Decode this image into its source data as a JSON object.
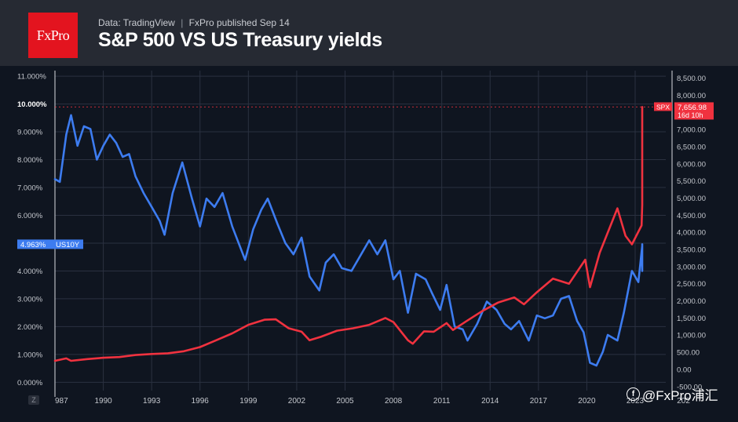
{
  "header": {
    "logo_text": "FxPro",
    "source": "Data: TradingView",
    "separator": "|",
    "published": "FxPro published Sep 14",
    "title": "S&P 500 VS US Treasury yields"
  },
  "watermark": {
    "icon": "facebook-icon",
    "text": "@FxPro浦汇"
  },
  "zoom_label": "Z",
  "colors": {
    "background": "#0f1520",
    "header": "#262a33",
    "us10y": "#3d7cf0",
    "spx": "#f0323f",
    "grid": "#2a3140",
    "axis_text": "#c4c7cd"
  },
  "chart_data": {
    "type": "line",
    "title": "S&P 500 VS US Treasury yields",
    "xlabel": "",
    "x_ticks": [
      "987",
      "1990",
      "1993",
      "1996",
      "1999",
      "2002",
      "2005",
      "2008",
      "2011",
      "2014",
      "2017",
      "2020",
      "2023",
      "202"
    ],
    "x_range": [
      1987,
      2024.9
    ],
    "left_axis": {
      "ticks": [
        "0.000%",
        "1.000%",
        "2.000%",
        "3.000%",
        "4.000%",
        "5.000%",
        "6.000%",
        "7.000%",
        "8.000%",
        "9.000%",
        "10.000%",
        "11.000%"
      ],
      "range": [
        -0.3,
        11.2
      ]
    },
    "right_axis": {
      "ticks": [
        "-500.00",
        "0.00",
        "500.00",
        "1,000.00",
        "1,500.00",
        "2,000.00",
        "2,500.00",
        "3,000.00",
        "3,500.00",
        "4,000.00",
        "4,500.00",
        "5,000.00",
        "5,500.00",
        "6,000.00",
        "6,500.00",
        "7,000.00",
        "7,500.00",
        "8,000.00",
        "8,500.00"
      ],
      "range": [
        -620,
        8720
      ]
    },
    "series": [
      {
        "name": "US10Y",
        "axis": "left",
        "last_label": "4.963%",
        "points": [
          [
            1987.0,
            7.3
          ],
          [
            1987.3,
            7.2
          ],
          [
            1987.7,
            8.9
          ],
          [
            1988.0,
            9.6
          ],
          [
            1988.4,
            8.5
          ],
          [
            1988.8,
            9.2
          ],
          [
            1989.2,
            9.1
          ],
          [
            1989.6,
            8.0
          ],
          [
            1990.0,
            8.5
          ],
          [
            1990.4,
            8.9
          ],
          [
            1990.8,
            8.6
          ],
          [
            1991.2,
            8.1
          ],
          [
            1991.6,
            8.2
          ],
          [
            1992.0,
            7.4
          ],
          [
            1992.5,
            6.8
          ],
          [
            1993.0,
            6.3
          ],
          [
            1993.5,
            5.8
          ],
          [
            1993.8,
            5.3
          ],
          [
            1994.3,
            6.8
          ],
          [
            1994.9,
            7.9
          ],
          [
            1995.5,
            6.6
          ],
          [
            1996.0,
            5.6
          ],
          [
            1996.4,
            6.6
          ],
          [
            1996.9,
            6.3
          ],
          [
            1997.4,
            6.8
          ],
          [
            1998.0,
            5.6
          ],
          [
            1998.8,
            4.4
          ],
          [
            1999.3,
            5.5
          ],
          [
            1999.8,
            6.2
          ],
          [
            2000.2,
            6.6
          ],
          [
            2000.8,
            5.7
          ],
          [
            2001.3,
            5.0
          ],
          [
            2001.8,
            4.6
          ],
          [
            2002.3,
            5.2
          ],
          [
            2002.8,
            3.8
          ],
          [
            2003.4,
            3.3
          ],
          [
            2003.8,
            4.3
          ],
          [
            2004.3,
            4.6
          ],
          [
            2004.8,
            4.1
          ],
          [
            2005.4,
            4.0
          ],
          [
            2005.9,
            4.5
          ],
          [
            2006.5,
            5.1
          ],
          [
            2007.0,
            4.6
          ],
          [
            2007.5,
            5.1
          ],
          [
            2008.0,
            3.7
          ],
          [
            2008.4,
            4.0
          ],
          [
            2008.9,
            2.5
          ],
          [
            2009.4,
            3.9
          ],
          [
            2010.0,
            3.7
          ],
          [
            2010.4,
            3.2
          ],
          [
            2010.9,
            2.6
          ],
          [
            2011.3,
            3.5
          ],
          [
            2011.8,
            2.0
          ],
          [
            2012.3,
            1.9
          ],
          [
            2012.6,
            1.5
          ],
          [
            2013.2,
            2.1
          ],
          [
            2013.8,
            2.9
          ],
          [
            2014.4,
            2.6
          ],
          [
            2014.9,
            2.1
          ],
          [
            2015.3,
            1.9
          ],
          [
            2015.8,
            2.2
          ],
          [
            2016.4,
            1.5
          ],
          [
            2016.9,
            2.4
          ],
          [
            2017.4,
            2.3
          ],
          [
            2017.9,
            2.4
          ],
          [
            2018.4,
            3.0
          ],
          [
            2018.9,
            3.1
          ],
          [
            2019.4,
            2.2
          ],
          [
            2019.8,
            1.8
          ],
          [
            2020.2,
            0.7
          ],
          [
            2020.6,
            0.6
          ],
          [
            2021.0,
            1.1
          ],
          [
            2021.3,
            1.7
          ],
          [
            2021.9,
            1.5
          ],
          [
            2022.3,
            2.5
          ],
          [
            2022.8,
            4.0
          ],
          [
            2023.2,
            3.6
          ],
          [
            2023.8,
            4.9
          ],
          [
            2024.1,
            4.0
          ],
          [
            2024.5,
            4.5
          ],
          [
            2024.8,
            4.3
          ],
          [
            2025.2,
            4.4
          ],
          [
            2025.6,
            4.1
          ],
          [
            2025.9,
            4.5
          ],
          [
            2026.1,
            4.96
          ]
        ]
      },
      {
        "name": "SPX",
        "axis": "right",
        "last_label": "7,656.98",
        "time_label": "16d 10h",
        "points": [
          [
            1987.0,
            250
          ],
          [
            1987.7,
            320
          ],
          [
            1988.0,
            250
          ],
          [
            1989.0,
            300
          ],
          [
            1990.0,
            340
          ],
          [
            1991.0,
            360
          ],
          [
            1992.0,
            420
          ],
          [
            1993.0,
            450
          ],
          [
            1994.0,
            470
          ],
          [
            1995.0,
            530
          ],
          [
            1996.0,
            650
          ],
          [
            1997.0,
            850
          ],
          [
            1998.0,
            1050
          ],
          [
            1999.0,
            1300
          ],
          [
            2000.0,
            1450
          ],
          [
            2000.7,
            1460
          ],
          [
            2001.5,
            1200
          ],
          [
            2002.3,
            1100
          ],
          [
            2002.8,
            850
          ],
          [
            2003.5,
            950
          ],
          [
            2004.5,
            1130
          ],
          [
            2005.5,
            1200
          ],
          [
            2006.5,
            1300
          ],
          [
            2007.5,
            1500
          ],
          [
            2008.0,
            1380
          ],
          [
            2008.9,
            850
          ],
          [
            2009.2,
            750
          ],
          [
            2009.9,
            1110
          ],
          [
            2010.5,
            1100
          ],
          [
            2011.3,
            1350
          ],
          [
            2011.7,
            1150
          ],
          [
            2012.5,
            1400
          ],
          [
            2013.5,
            1700
          ],
          [
            2014.5,
            1950
          ],
          [
            2015.5,
            2100
          ],
          [
            2016.1,
            1900
          ],
          [
            2016.9,
            2250
          ],
          [
            2017.9,
            2650
          ],
          [
            2018.9,
            2500
          ],
          [
            2019.9,
            3200
          ],
          [
            2020.2,
            2400
          ],
          [
            2020.8,
            3400
          ],
          [
            2021.9,
            4700
          ],
          [
            2022.4,
            3900
          ],
          [
            2022.8,
            3650
          ],
          [
            2023.4,
            4200
          ],
          [
            2024.0,
            4800
          ],
          [
            2024.6,
            5500
          ],
          [
            2025.3,
            5600
          ],
          [
            2025.6,
            6400
          ],
          [
            2025.9,
            7200
          ],
          [
            2026.1,
            7656.98
          ]
        ]
      }
    ],
    "grid": true,
    "legend": "none"
  }
}
